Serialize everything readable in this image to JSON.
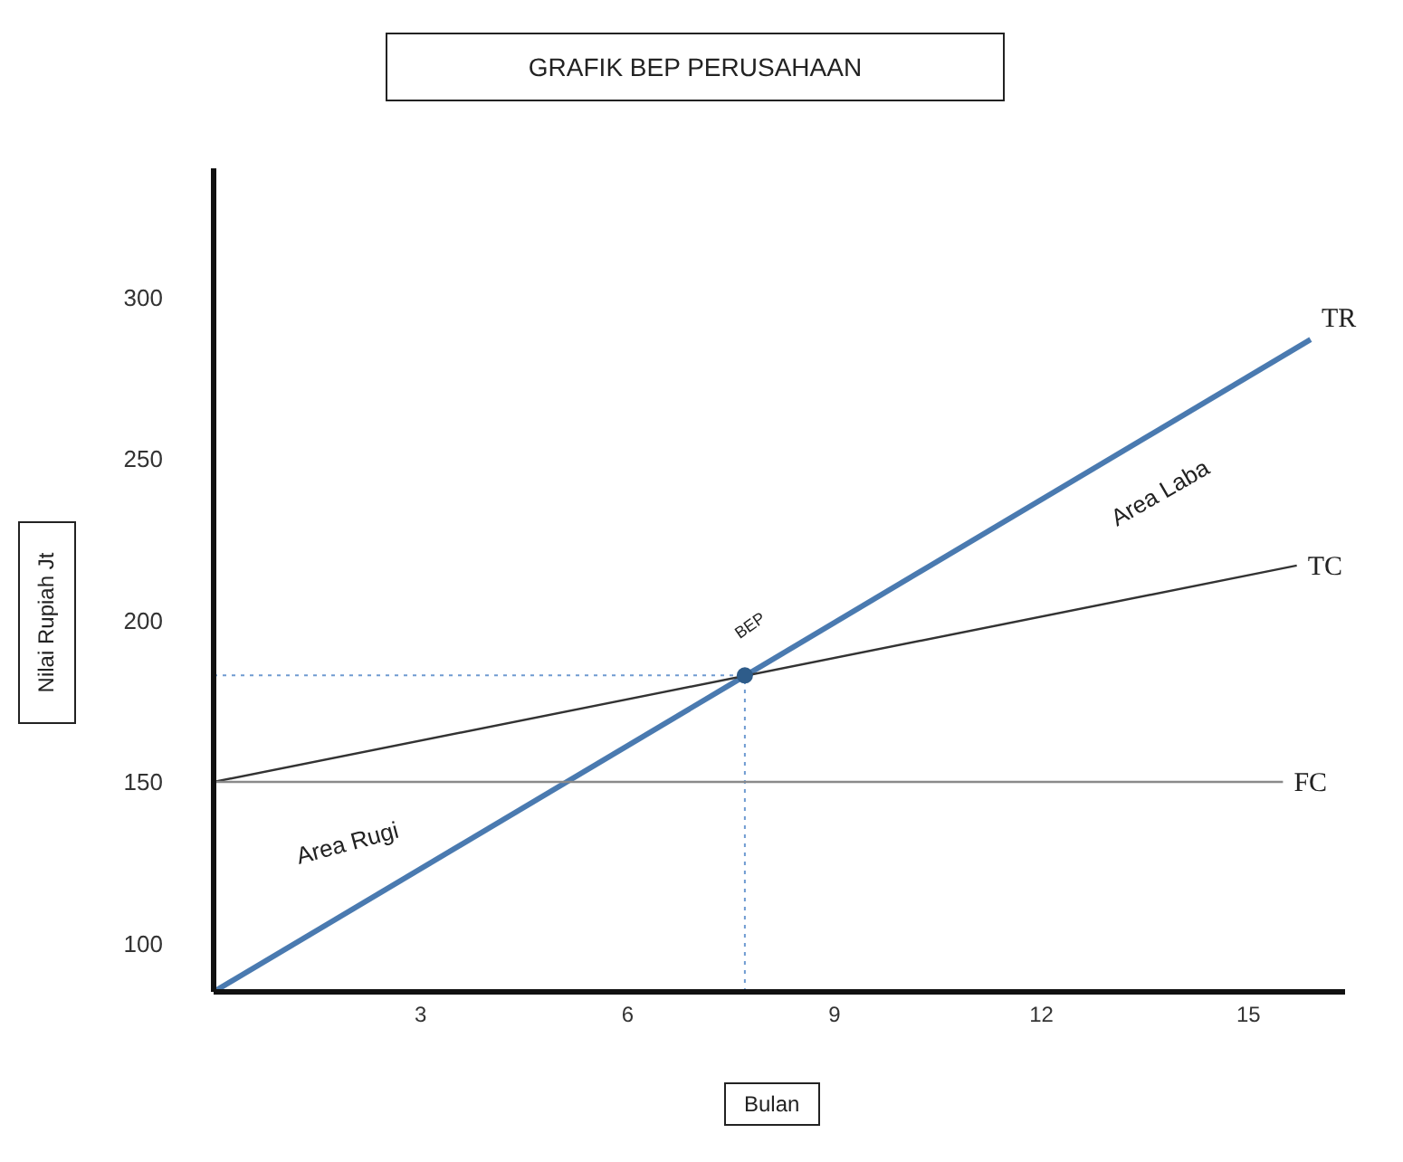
{
  "chart_data": {
    "type": "line",
    "title": "GRAFIK BEP PERUSAHAAN",
    "xlabel": "Bulan",
    "ylabel": "Nilai Rupiah Jt",
    "series": [
      {
        "name": "TR",
        "color": "#4a7ab0",
        "x": [
          0,
          15.9
        ],
        "values": [
          85,
          287
        ]
      },
      {
        "name": "TC",
        "color": "#333333",
        "x": [
          0,
          15.7
        ],
        "values": [
          150,
          217
        ]
      },
      {
        "name": "FC",
        "color": "#8a8a8a",
        "x": [
          0,
          15.5
        ],
        "values": [
          150,
          150
        ]
      },
      {
        "type": "scatter",
        "color": "#2e5c8a",
        "marker": "circle",
        "x": [
          7.7
        ],
        "values": [
          183
        ]
      }
    ],
    "annotations": [
      "BEP",
      "Area Laba",
      "Area Rugi"
    ],
    "ref_lines": [
      {
        "axis": "x",
        "value": 7.7,
        "color": "#6f9bd1",
        "line_style": "dotted"
      },
      {
        "axis": "y",
        "value": 183,
        "color": "#6f9bd1",
        "line_style": "dotted"
      }
    ],
    "xlim": [
      0,
      16.4
    ],
    "xticks": [
      3,
      6,
      9,
      12,
      15
    ],
    "ylim": [
      85,
      340
    ],
    "yticks": [
      100,
      150,
      200,
      250,
      300
    ],
    "grid": false,
    "legend": false,
    "line_style": "solid"
  }
}
